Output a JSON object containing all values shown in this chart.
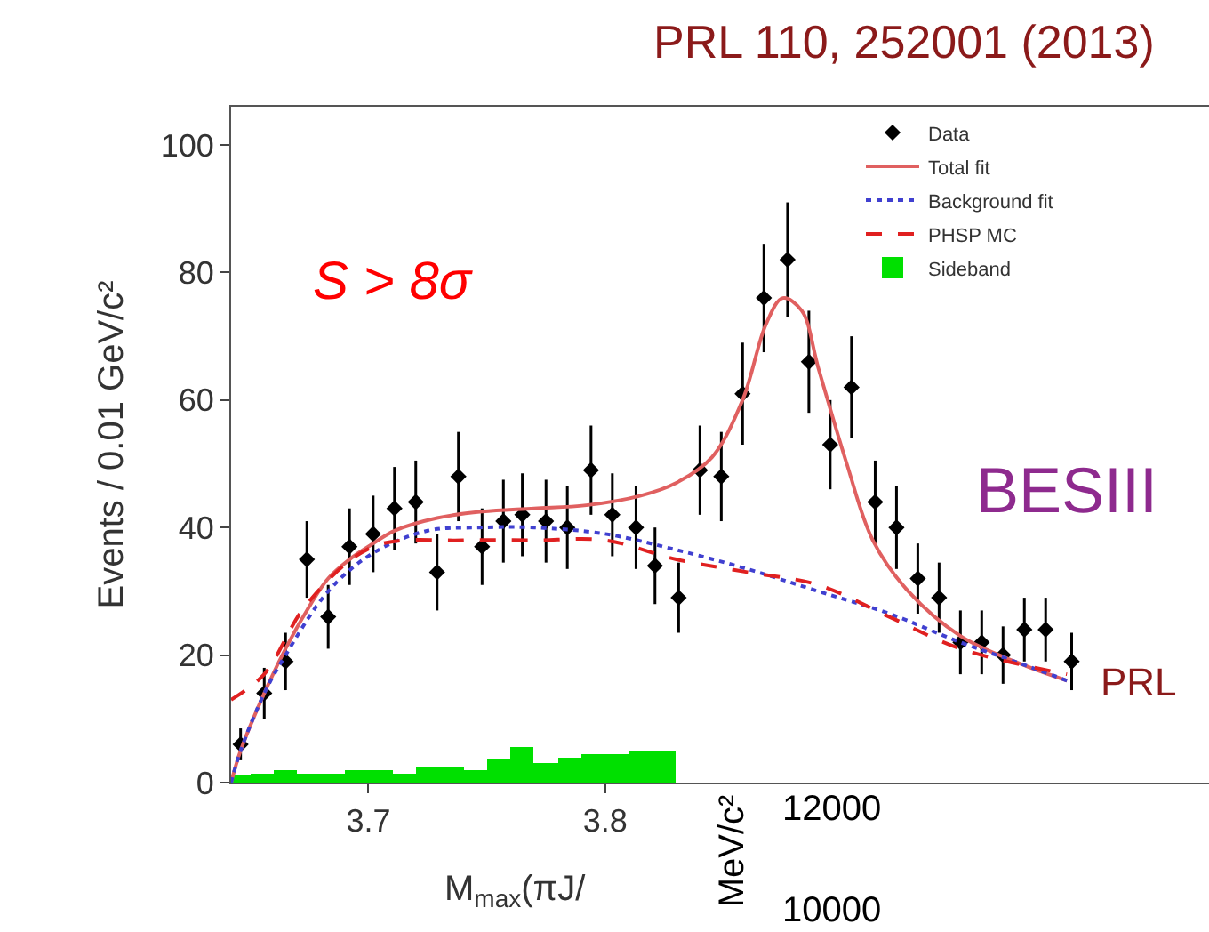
{
  "chart_data": {
    "type": "scatter",
    "title": "PRL 110, 252001 (2013)",
    "xlabel": "M$_{max}$(πJ/",
    "ylabel": "Events / 0.01 GeV/c²",
    "xlim": [
      3.642,
      4.055
    ],
    "xticks": [
      3.7,
      3.8
    ],
    "ylim": [
      0,
      106
    ],
    "yticks": [
      0,
      20,
      40,
      60,
      80,
      100
    ],
    "legend": "top right",
    "annotations": [
      "S > 8σ",
      "BESIII",
      "PRL",
      "MeV/c²",
      "12000",
      "10000"
    ],
    "series": [
      {
        "name": "Data",
        "color": "#000000",
        "marker": "diamond",
        "x": [
          3.646,
          3.656,
          3.665,
          3.674,
          3.683,
          3.692,
          3.702,
          3.711,
          3.72,
          3.729,
          3.738,
          3.748,
          3.757,
          3.765,
          3.775,
          3.784,
          3.794,
          3.803,
          3.813,
          3.821,
          3.831,
          3.84,
          3.849,
          3.858,
          3.867,
          3.877,
          3.886,
          3.895,
          3.904,
          3.914,
          3.923,
          3.932,
          3.941,
          3.95,
          3.959,
          3.968,
          3.977,
          3.986,
          3.997
        ],
        "values": [
          6,
          14,
          19,
          35,
          26,
          37,
          39,
          43,
          44,
          33,
          48,
          37,
          41,
          42,
          41,
          40,
          49,
          42,
          40,
          34,
          29,
          49,
          48,
          61,
          76,
          82,
          66,
          53,
          62,
          44,
          40,
          32,
          29,
          22,
          22,
          20,
          24,
          24,
          19
        ],
        "errors": [
          2.5,
          4,
          4.5,
          6,
          5,
          6,
          6,
          6.5,
          6.5,
          6,
          7,
          6,
          6.5,
          6.5,
          6.5,
          6.5,
          7,
          6.5,
          6.5,
          6,
          5.5,
          7,
          7,
          8,
          8.5,
          9,
          8,
          7,
          8,
          6.5,
          6.5,
          5.5,
          5.5,
          5,
          5,
          4.5,
          5,
          5,
          4.5
        ]
      },
      {
        "name": "Total fit",
        "type": "line",
        "color": "#e06060",
        "line_style": "solid",
        "marker": "none",
        "x": [
          3.642,
          3.646,
          3.656,
          3.665,
          3.674,
          3.683,
          3.692,
          3.702,
          3.711,
          3.729,
          3.748,
          3.77,
          3.792,
          3.815,
          3.83,
          3.845,
          3.858,
          3.868,
          3.875,
          3.883,
          3.89,
          3.902,
          3.913,
          3.928,
          3.95,
          3.973,
          3.995
        ],
        "values": [
          0,
          5,
          14,
          21,
          27,
          32,
          35,
          37.5,
          39.5,
          41.5,
          42.5,
          43,
          43.5,
          45,
          47,
          51,
          60,
          72,
          76,
          74,
          65,
          50,
          38,
          30,
          23,
          19,
          16
        ]
      },
      {
        "name": "Background fit",
        "type": "line",
        "color": "#4040d0",
        "line_style": "dotted",
        "marker": "none",
        "x": [
          3.642,
          3.646,
          3.656,
          3.665,
          3.683,
          3.702,
          3.725,
          3.747,
          3.77,
          3.8,
          3.83,
          3.86,
          3.89,
          3.92,
          3.95,
          3.973,
          3.995
        ],
        "values": [
          0,
          5,
          14,
          20,
          30,
          36,
          39.5,
          40,
          40,
          39,
          36.5,
          33.5,
          30,
          26.5,
          22,
          19,
          16
        ]
      },
      {
        "name": "PHSP MC",
        "type": "line",
        "color": "#e02020",
        "line_style": "dashed",
        "marker": "none",
        "x": [
          3.642,
          3.656,
          3.674,
          3.702,
          3.74,
          3.77,
          3.8,
          3.83,
          3.86,
          3.89,
          3.92,
          3.95,
          3.995
        ],
        "values": [
          13,
          17,
          28,
          37,
          38,
          38,
          38,
          35,
          33,
          31,
          26,
          21,
          17
        ]
      },
      {
        "name": "Sideband",
        "type": "bar",
        "color": "#00e000",
        "x": [
          3.645,
          3.655,
          3.665,
          3.675,
          3.685,
          3.695,
          3.705,
          3.715,
          3.725,
          3.735,
          3.745,
          3.755,
          3.765,
          3.775,
          3.785,
          3.795,
          3.805,
          3.815,
          3.825
        ],
        "values": [
          1,
          1.5,
          2,
          1.5,
          1.5,
          2,
          2,
          1.5,
          2.5,
          2.5,
          2,
          3.5,
          5.5,
          3,
          4,
          4.5,
          4.5,
          5,
          5
        ]
      }
    ]
  }
}
